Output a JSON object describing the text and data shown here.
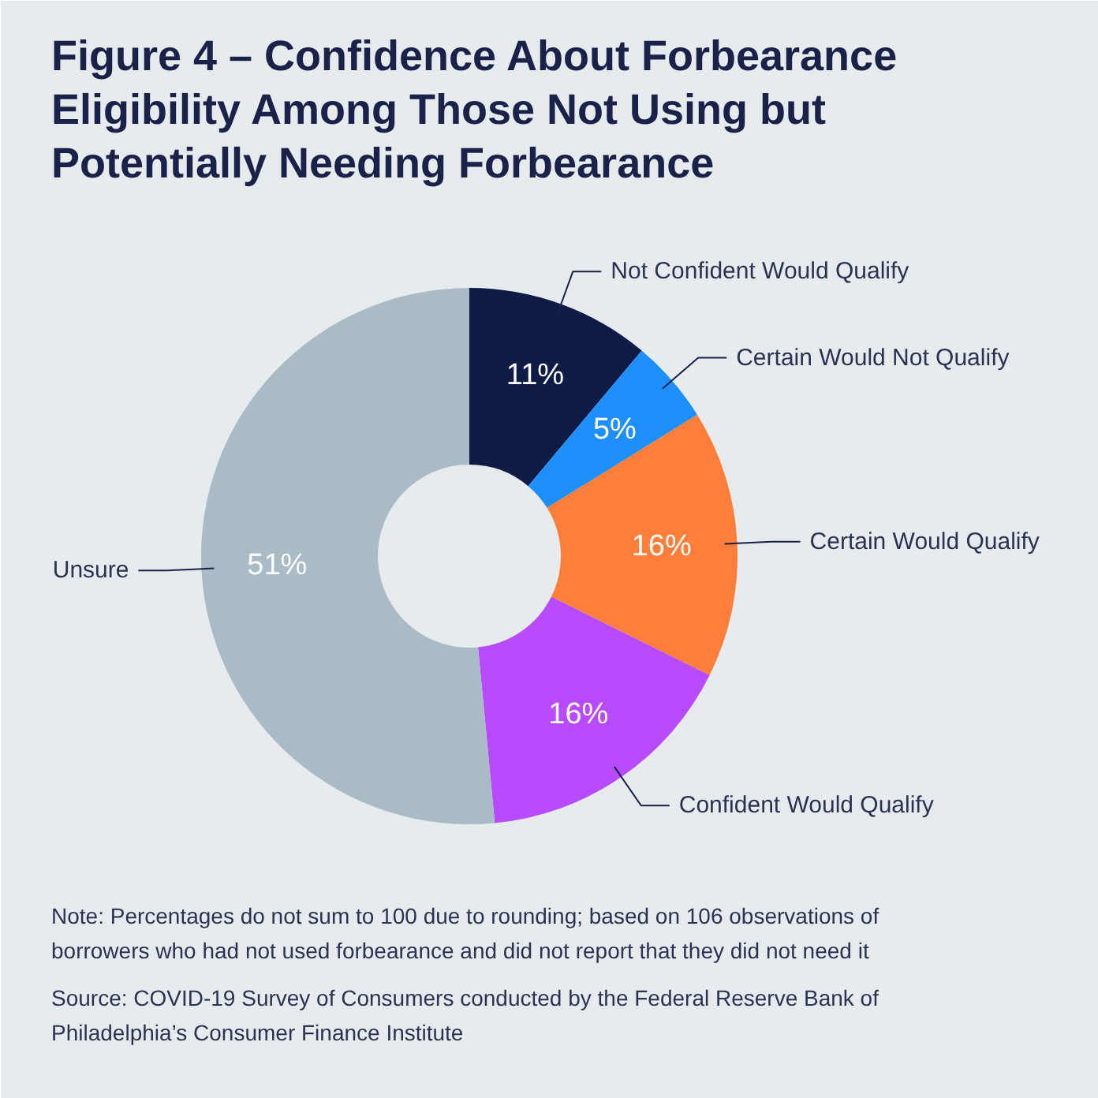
{
  "chart_data": {
    "type": "donut",
    "title": "Figure 4 – Confidence About Forbearance Eligibility Among Those Not Using but Potentially Needing Forbearance",
    "categories": [
      "Not Confident Would Qualify",
      "Certain Would Not Qualify",
      "Certain Would Qualify",
      "Confident Would Qualify",
      "Unsure"
    ],
    "values": [
      11,
      5,
      16,
      16,
      51
    ],
    "colors": [
      "#0d1b45",
      "#1f8fff",
      "#ff7f3a",
      "#b84bff",
      "#a9bcc6"
    ],
    "value_labels": [
      "11%",
      "5%",
      "16%",
      "16%",
      "51%"
    ],
    "annotations": [
      "Note: Percentages do not sum to 100 due to rounding; based on 106 observations of borrowers who had not used forbearance and did not report that they did not need it",
      "Source: COVID-19 Survey of Consumers conducted by the Federal Reserve Bank of Philadelphia’s Consumer Finance Institute"
    ]
  }
}
